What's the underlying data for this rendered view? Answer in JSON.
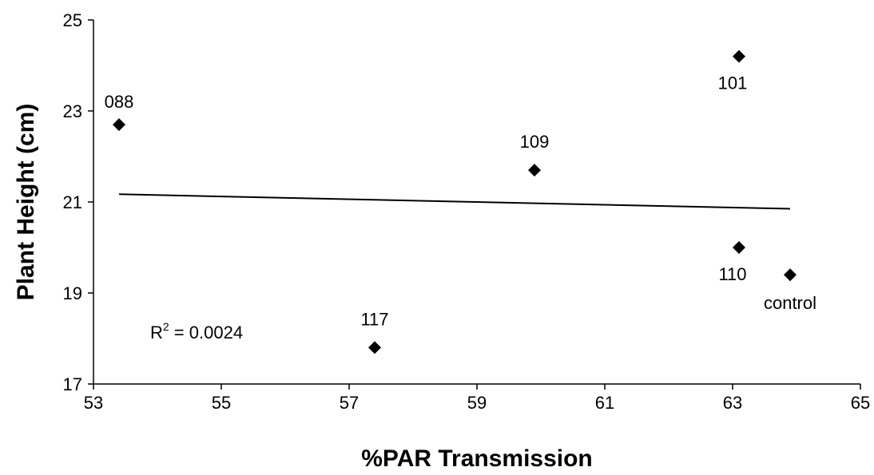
{
  "chart_data": {
    "type": "scatter",
    "title": "",
    "xlabel": "%PAR Transmission",
    "ylabel": "Plant Height (cm)",
    "xlim": [
      53,
      65
    ],
    "ylim": [
      17,
      25
    ],
    "xticks": [
      53,
      55,
      57,
      59,
      61,
      63,
      65
    ],
    "yticks": [
      17,
      19,
      21,
      23,
      25
    ],
    "grid": false,
    "legend": "none",
    "points": [
      {
        "label": "088",
        "x": 53.4,
        "y": 22.7
      },
      {
        "label": "117",
        "x": 57.4,
        "y": 17.8
      },
      {
        "label": "109",
        "x": 59.9,
        "y": 21.7
      },
      {
        "label": "101",
        "x": 63.1,
        "y": 24.2
      },
      {
        "label": "110",
        "x": 63.1,
        "y": 20.0
      },
      {
        "label": "control",
        "x": 63.9,
        "y": 19.4
      }
    ],
    "trendline": {
      "type": "linear",
      "x": [
        53.4,
        63.9
      ],
      "y": [
        21.17,
        20.85
      ]
    },
    "annotation": {
      "r2_prefix": "R",
      "r2_superscript": "2",
      "r2_value": " = 0.0024"
    },
    "marker_color": "#000000"
  }
}
